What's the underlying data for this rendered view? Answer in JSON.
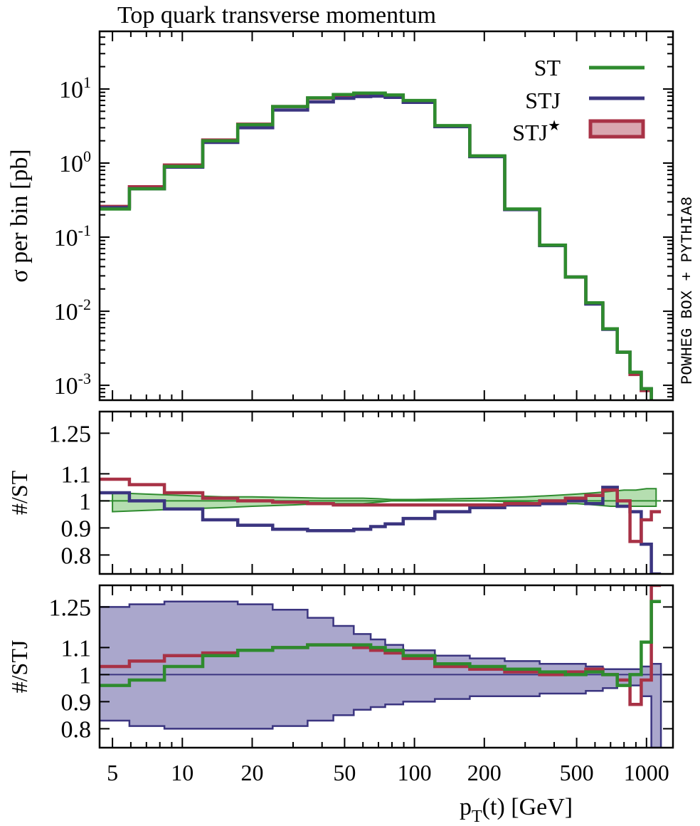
{
  "title": "Top quark transverse momentum",
  "side_label": "POWHEG BOX + PYTHIA8",
  "x_axis": {
    "label_main": "p",
    "label_sub": "T",
    "label_rest": "(t) [GeV]",
    "scale": "log",
    "range": [
      4.4,
      1300
    ],
    "ticks": [
      5,
      10,
      20,
      50,
      100,
      200,
      500,
      1000
    ],
    "tick_labels": [
      "5",
      "10",
      "20",
      "50",
      "100",
      "200",
      "500",
      "1000"
    ]
  },
  "legend": {
    "st": "ST",
    "stj": "STJ",
    "stjstar_base": "STJ",
    "stjstar_sup": "★"
  },
  "colors": {
    "st": "#2e8b2e",
    "stj": "#3b3580",
    "stjstar": "#a83246",
    "stjstar_fill": "#d9a7b0",
    "st_band": "#b5deb0",
    "stj_band": "#aaa7cc"
  },
  "panels": {
    "top": {
      "ylabel": "σ per bin [pb]",
      "yscale": "log",
      "yrange": [
        0.00063,
        60
      ],
      "ytick_base": "10",
      "ytick_exponents": [
        "1",
        "0",
        "-1",
        "-2",
        "-3"
      ]
    },
    "mid": {
      "ylabel": "#/ST",
      "yrange": [
        0.73,
        1.33
      ],
      "yticks": [
        0.8,
        0.9,
        1.0,
        1.1,
        1.25
      ],
      "ytick_labels": [
        "0.8",
        "0.9",
        "1",
        "1.1",
        "1.25"
      ]
    },
    "bot": {
      "ylabel": "#/STJ",
      "yrange": [
        0.73,
        1.33
      ],
      "yticks": [
        0.8,
        0.9,
        1.0,
        1.1,
        1.25
      ],
      "ytick_labels": [
        "0.8",
        "0.9",
        "1",
        "1.1",
        "1.25"
      ]
    }
  },
  "chart_data": {
    "type": "line",
    "title": "Top quark transverse momentum",
    "xlabel": "pT(t) [GeV]",
    "ylabel": "σ per bin [pb]",
    "x": [
      5,
      7,
      10,
      15,
      20,
      30,
      40,
      50,
      60,
      70,
      80,
      100,
      150,
      200,
      300,
      400,
      500,
      600,
      700,
      800,
      900,
      1000,
      1100
    ],
    "series": [
      {
        "name": "ST",
        "values": [
          0.24,
          0.45,
          0.9,
          2.0,
          3.3,
          5.8,
          7.6,
          8.4,
          8.8,
          8.8,
          8.3,
          7.0,
          3.2,
          1.25,
          0.24,
          0.078,
          0.029,
          0.013,
          0.0058,
          0.0028,
          0.0015,
          0.0009,
          0.0006
        ]
      },
      {
        "name": "STJ",
        "values": [
          0.25,
          0.45,
          0.88,
          1.9,
          3.0,
          5.2,
          6.7,
          7.5,
          7.9,
          8.0,
          7.7,
          6.6,
          3.1,
          1.22,
          0.235,
          0.077,
          0.029,
          0.0125,
          0.0057,
          0.0028,
          0.0015,
          0.0009,
          0.0006
        ]
      },
      {
        "name": "STJ★",
        "values": [
          0.26,
          0.48,
          0.94,
          2.05,
          3.35,
          5.8,
          7.5,
          8.2,
          8.6,
          8.6,
          8.1,
          6.9,
          3.15,
          1.23,
          0.236,
          0.078,
          0.029,
          0.0128,
          0.0058,
          0.0028,
          0.0014,
          0.00085,
          0.0006
        ]
      }
    ],
    "ratio_to_ST": {
      "x": [
        5,
        7,
        10,
        15,
        20,
        30,
        40,
        50,
        60,
        70,
        80,
        100,
        150,
        200,
        300,
        400,
        500,
        600,
        700,
        800,
        900,
        1000,
        1100
      ],
      "series": [
        {
          "name": "ST",
          "values": [
            1.0,
            1.0,
            1.0,
            1.0,
            1.0,
            1.0,
            1.0,
            1.0,
            1.0,
            1.0,
            1.0,
            1.0,
            1.0,
            1.0,
            1.0,
            1.0,
            1.0,
            1.0,
            1.0,
            1.0,
            1.0,
            1.0,
            1.0
          ]
        },
        {
          "name": "STJ",
          "values": [
            1.03,
            1.0,
            0.97,
            0.93,
            0.91,
            0.895,
            0.89,
            0.89,
            0.895,
            0.905,
            0.915,
            0.935,
            0.96,
            0.975,
            0.985,
            0.99,
            1.0,
            0.99,
            1.05,
            0.98,
            0.96,
            0.84,
            0.73
          ]
        },
        {
          "name": "STJ★",
          "values": [
            1.08,
            1.06,
            1.03,
            1.01,
            1.0,
            0.995,
            0.99,
            0.985,
            0.985,
            0.985,
            0.985,
            0.985,
            0.985,
            0.985,
            0.99,
            1.0,
            1.01,
            1.02,
            1.04,
            1.0,
            0.85,
            0.93,
            0.96
          ]
        }
      ],
      "band_ST": {
        "low": [
          0.96,
          0.965,
          0.97,
          0.975,
          0.98,
          0.985,
          0.99,
          0.99,
          0.99,
          0.995,
          1.0,
          1.0,
          1.0,
          1.0,
          0.995,
          0.99,
          0.99,
          0.985,
          0.98,
          0.98,
          0.98,
          0.98,
          0.98
        ],
        "high": [
          1.03,
          1.025,
          1.02,
          1.015,
          1.015,
          1.012,
          1.01,
          1.01,
          1.01,
          1.008,
          1.005,
          1.005,
          1.008,
          1.01,
          1.015,
          1.02,
          1.025,
          1.03,
          1.035,
          1.04,
          1.04,
          1.045,
          1.045
        ]
      }
    },
    "ratio_to_STJ": {
      "x": [
        5,
        7,
        10,
        15,
        20,
        30,
        40,
        50,
        60,
        70,
        80,
        100,
        150,
        200,
        300,
        400,
        500,
        600,
        700,
        800,
        900,
        1000,
        1100
      ],
      "series": [
        {
          "name": "ST",
          "values": [
            0.96,
            0.98,
            1.03,
            1.07,
            1.09,
            1.1,
            1.11,
            1.11,
            1.11,
            1.1,
            1.09,
            1.07,
            1.04,
            1.03,
            1.02,
            1.01,
            1.0,
            1.01,
            1.0,
            0.96,
            1.0,
            1.12,
            1.27
          ]
        },
        {
          "name": "STJ★",
          "values": [
            1.03,
            1.05,
            1.07,
            1.08,
            1.09,
            1.1,
            1.11,
            1.11,
            1.1,
            1.09,
            1.08,
            1.06,
            1.03,
            1.02,
            1.01,
            1.0,
            1.01,
            1.02,
            1.0,
            0.98,
            0.89,
            0.98,
            1.33
          ]
        }
      ],
      "band_STJ": {
        "low": [
          0.83,
          0.81,
          0.8,
          0.8,
          0.8,
          0.81,
          0.83,
          0.85,
          0.87,
          0.88,
          0.89,
          0.9,
          0.91,
          0.92,
          0.92,
          0.93,
          0.93,
          0.94,
          0.95,
          0.96,
          0.96,
          0.92,
          0.73
        ],
        "high": [
          1.25,
          1.26,
          1.27,
          1.27,
          1.26,
          1.24,
          1.21,
          1.18,
          1.15,
          1.13,
          1.11,
          1.09,
          1.07,
          1.06,
          1.05,
          1.04,
          1.04,
          1.03,
          1.02,
          1.02,
          1.02,
          1.03,
          1.04
        ]
      }
    }
  }
}
